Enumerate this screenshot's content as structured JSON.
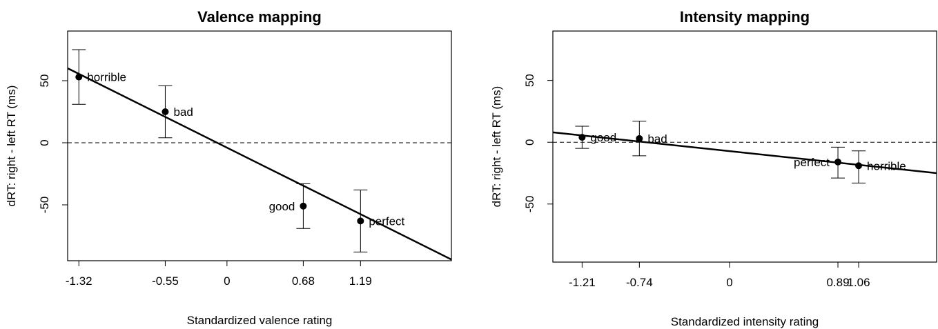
{
  "chart_data": [
    {
      "type": "scatter",
      "title": "Valence mapping",
      "xlabel": "Standardized valence rating",
      "ylabel": "dRT: right - left RT (ms)",
      "xlim": [
        -1.42,
        2.0
      ],
      "ylim": [
        -95,
        90
      ],
      "x_ticks": [
        "-1.32",
        "-0.55",
        "0",
        "0.68",
        "1.19"
      ],
      "y_ticks": [
        "-50",
        "0",
        "50"
      ],
      "points": [
        {
          "label": "horrible",
          "x": -1.32,
          "y": 53,
          "err_low": 31,
          "err_high": 75,
          "label_side": "right"
        },
        {
          "label": "bad",
          "x": -0.55,
          "y": 25,
          "err_low": 4,
          "err_high": 46,
          "label_side": "right"
        },
        {
          "label": "good",
          "x": 0.68,
          "y": -51,
          "err_low": -69,
          "err_high": -33,
          "label_side": "left"
        },
        {
          "label": "perfect",
          "x": 1.19,
          "y": -63,
          "err_low": -88,
          "err_high": -38,
          "label_side": "right"
        }
      ],
      "fit_line": {
        "x": [
          -1.42,
          2.0
        ],
        "y": [
          60,
          -94
        ]
      },
      "reference_line": 0
    },
    {
      "type": "scatter",
      "title": "Intensity mapping",
      "xlabel": "Standardized intensity rating",
      "ylabel": "dRT: right - left RT (ms)",
      "xlim": [
        -1.45,
        1.7
      ],
      "ylim": [
        -97,
        90
      ],
      "x_ticks": [
        "-1.21",
        "-0.74",
        "0",
        "0.89",
        "1.06"
      ],
      "y_ticks": [
        "-50",
        "0",
        "50"
      ],
      "points": [
        {
          "label": "good",
          "x": -1.21,
          "y": 4,
          "err_low": -5,
          "err_high": 13,
          "label_side": "right"
        },
        {
          "label": "bad",
          "x": -0.74,
          "y": 3,
          "err_low": -11,
          "err_high": 17,
          "label_side": "right"
        },
        {
          "label": "perfect",
          "x": 0.89,
          "y": -16,
          "err_low": -29,
          "err_high": -4,
          "label_side": "left"
        },
        {
          "label": "horrible",
          "x": 1.06,
          "y": -19,
          "err_low": -33,
          "err_high": -7,
          "label_side": "right"
        }
      ],
      "fit_line": {
        "x": [
          -1.45,
          1.7
        ],
        "y": [
          8,
          -25
        ]
      },
      "reference_line": 0
    }
  ]
}
